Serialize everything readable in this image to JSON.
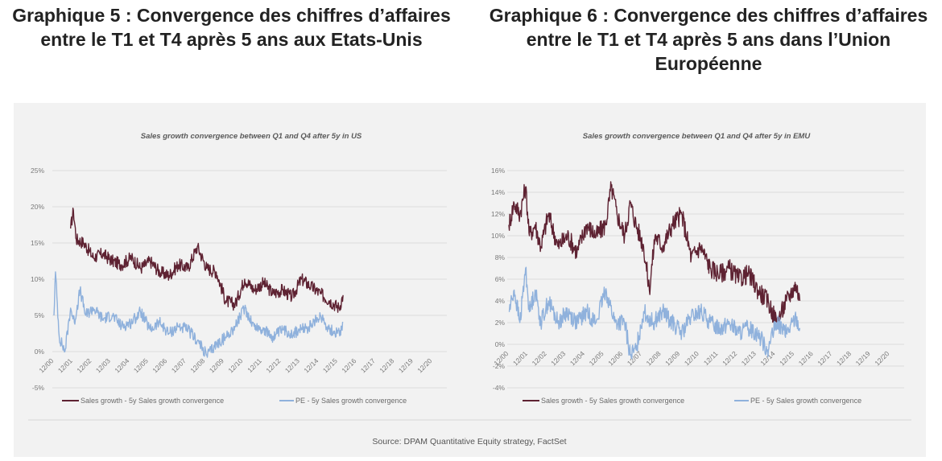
{
  "headings": {
    "left": "Graphique 5 : Convergence des chiffres d’affaires entre le T1 et T4 après 5 ans aux Etats-Unis",
    "right": "Graphique 6 : Convergence des chiffres d’affaires entre le T1 et T4 après 5 ans dans l’Union Européenne"
  },
  "source": "Source: DPAM Quantitative Equity strategy, FactSet",
  "colors": {
    "sales": "#5e2232",
    "pe": "#8fb1dc",
    "panel": "#f2f2f2"
  },
  "chart_data": [
    {
      "type": "line",
      "title": "Sales growth convergence between Q1 and Q4 after 5y in US",
      "x_ticks": [
        "12/00",
        "12/01",
        "12/02",
        "12/03",
        "12/04",
        "12/05",
        "12/06",
        "12/07",
        "12/08",
        "12/09",
        "12/10",
        "12/11",
        "12/12",
        "12/13",
        "12/14",
        "12/15",
        "12/16",
        "12/17",
        "12/18",
        "12/19",
        "12/20"
      ],
      "y_ticks": [
        "25%",
        "20%",
        "15%",
        "10%",
        "5%",
        "0%",
        "-5%"
      ],
      "ylim": [
        -5,
        25
      ],
      "xlim": [
        2000.92,
        2020.92
      ],
      "legend_position": "bottom",
      "series": [
        {
          "name": "Sales growth - 5y Sales growth convergence",
          "x": [
            2001.8,
            2001.95,
            2002.1,
            2002.5,
            2003.0,
            2003.5,
            2004.0,
            2004.5,
            2005.0,
            2005.5,
            2006.0,
            2006.5,
            2007.0,
            2007.5,
            2008.0,
            2008.5,
            2009.0,
            2009.5,
            2010.0,
            2010.5,
            2011.0,
            2011.5,
            2012.0,
            2012.5,
            2013.0,
            2013.5,
            2014.0,
            2014.5,
            2015.0,
            2015.5,
            2016.0,
            2016.2
          ],
          "y": [
            17,
            19.5,
            15.5,
            15,
            13,
            13.5,
            12.5,
            12,
            13,
            11.5,
            12.5,
            11,
            10.5,
            12,
            11.5,
            14.5,
            11.5,
            11,
            7,
            6.5,
            10,
            8.5,
            9.5,
            8,
            8.5,
            7.5,
            10,
            9,
            8,
            7,
            6,
            7.8
          ]
        },
        {
          "name": "PE - 5y Sales growth convergence",
          "x": [
            2000.92,
            2001.0,
            2001.2,
            2001.5,
            2001.8,
            2002.0,
            2002.3,
            2002.6,
            2003.0,
            2003.5,
            2004.0,
            2004.5,
            2005.0,
            2005.5,
            2006.0,
            2006.5,
            2007.0,
            2007.5,
            2008.0,
            2008.5,
            2009.0,
            2009.5,
            2010.0,
            2010.5,
            2011.0,
            2011.5,
            2012.0,
            2012.5,
            2013.0,
            2013.5,
            2014.0,
            2014.5,
            2015.0,
            2015.5,
            2016.0,
            2016.2
          ],
          "y": [
            5,
            11,
            2,
            0,
            6,
            4,
            8.5,
            5,
            6,
            4.5,
            5,
            3.5,
            4,
            5.5,
            3,
            4,
            2.5,
            3.5,
            3,
            1.5,
            -0.5,
            1,
            2,
            3.5,
            6,
            3.5,
            3,
            2,
            3,
            2.5,
            3,
            3.5,
            5,
            3,
            2.5,
            4
          ]
        }
      ]
    },
    {
      "type": "line",
      "title": "Sales growth convergence between Q1 and Q4 after 5y in EMU",
      "x_ticks": [
        "12/00",
        "12/01",
        "12/02",
        "12/03",
        "12/04",
        "12/05",
        "12/06",
        "12/07",
        "12/08",
        "12/09",
        "12/10",
        "12/11",
        "12/12",
        "12/13",
        "12/14",
        "12/15",
        "12/16",
        "12/17",
        "12/18",
        "12/19",
        "12/20"
      ],
      "y_ticks": [
        "16%",
        "14%",
        "12%",
        "10%",
        "8%",
        "6%",
        "4%",
        "2%",
        "0%",
        "-2%",
        "-4%"
      ],
      "ylim": [
        -4,
        16
      ],
      "xlim": [
        2000.92,
        2020.92
      ],
      "legend_position": "bottom",
      "series": [
        {
          "name": "Sales growth - 5y Sales growth convergence",
          "x": [
            2000.92,
            2001.2,
            2001.5,
            2001.8,
            2002.0,
            2002.3,
            2002.6,
            2003.0,
            2003.5,
            2004.0,
            2004.5,
            2005.0,
            2005.5,
            2006.0,
            2006.3,
            2006.6,
            2007.0,
            2007.3,
            2007.6,
            2008.0,
            2008.3,
            2008.6,
            2009.0,
            2009.5,
            2010.0,
            2010.5,
            2011.0,
            2011.5,
            2012.0,
            2012.5,
            2013.0,
            2013.5,
            2014.0,
            2014.5,
            2015.0,
            2015.5,
            2016.0,
            2016.2
          ],
          "y": [
            11,
            13,
            12,
            14.5,
            10,
            11,
            9,
            12,
            9,
            10,
            8.5,
            11,
            10,
            11,
            14.5,
            12,
            10,
            13,
            11,
            9,
            5,
            10,
            9,
            11,
            12,
            8,
            9,
            7,
            6.5,
            7,
            6,
            6.5,
            5,
            4,
            2,
            4,
            5.5,
            4
          ]
        },
        {
          "name": "PE - 5y Sales growth convergence",
          "x": [
            2000.92,
            2001.2,
            2001.5,
            2001.8,
            2002.0,
            2002.3,
            2002.6,
            2003.0,
            2003.5,
            2004.0,
            2004.5,
            2005.0,
            2005.5,
            2006.0,
            2006.5,
            2007.0,
            2007.3,
            2007.6,
            2008.0,
            2008.5,
            2009.0,
            2009.5,
            2010.0,
            2010.5,
            2011.0,
            2011.5,
            2012.0,
            2012.5,
            2013.0,
            2013.5,
            2014.0,
            2014.5,
            2015.0,
            2015.5,
            2016.0,
            2016.2
          ],
          "y": [
            3,
            5,
            2,
            7,
            3,
            5,
            2,
            4,
            2,
            3,
            2,
            3,
            2,
            5,
            2,
            2,
            -1,
            -0.5,
            3,
            2,
            3,
            2,
            1,
            2.5,
            3,
            2,
            1.5,
            2,
            1,
            1.5,
            1,
            -0.5,
            2,
            1,
            2.5,
            1.5
          ]
        }
      ]
    }
  ]
}
